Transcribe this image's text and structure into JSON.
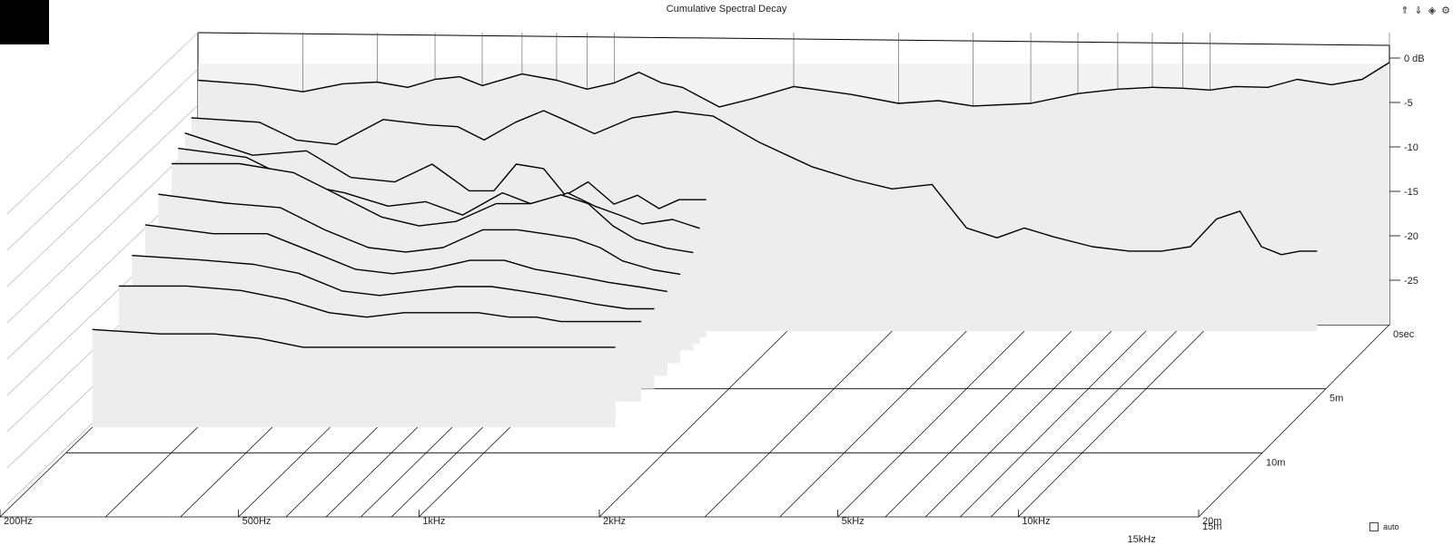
{
  "window": {
    "title": "Cumulative Spectral Decay"
  },
  "toolbar": {
    "icons": [
      "arrow-up-icon",
      "arrow-down-icon",
      "diamond-icon",
      "settings-icon"
    ]
  },
  "controls": {
    "auto_label": "auto",
    "auto_checked": false
  },
  "chart_data": {
    "type": "waterfall",
    "title": "Cumulative Spectral Decay",
    "x_axis": {
      "scale": "log",
      "range_hz": [
        200,
        20000
      ],
      "labels": [
        {
          "hz": 200,
          "label": "200Hz"
        },
        {
          "hz": 500,
          "label": "500Hz"
        },
        {
          "hz": 1000,
          "label": "1kHz"
        },
        {
          "hz": 2000,
          "label": "2kHz"
        },
        {
          "hz": 5000,
          "label": "5kHz"
        },
        {
          "hz": 10000,
          "label": "10kHz"
        },
        {
          "hz": 20000,
          "label": "20m"
        }
      ],
      "back_labels": [
        {
          "hz": 15000,
          "label": "15kHz"
        }
      ]
    },
    "z_axis": {
      "labels": [
        {
          "t": 0,
          "label": "0sec"
        },
        {
          "t": 5,
          "label": "5m"
        },
        {
          "t": 10,
          "label": "10m"
        },
        {
          "t": 15,
          "label": "15m"
        }
      ]
    },
    "y_axis": {
      "range_db": [
        -30,
        0
      ],
      "ticks": [
        {
          "db": 0,
          "label": "0 dB"
        },
        {
          "db": -5,
          "label": "-5"
        },
        {
          "db": -10,
          "label": "-10"
        },
        {
          "db": -15,
          "label": "-15"
        },
        {
          "db": -20,
          "label": "-20"
        },
        {
          "db": -25,
          "label": "-25"
        }
      ]
    },
    "slices": [
      {
        "t": 0,
        "points": [
          [
            200,
            -2.5
          ],
          [
            250,
            -3
          ],
          [
            300,
            -3.8
          ],
          [
            350,
            -2.9
          ],
          [
            400,
            -2.7
          ],
          [
            450,
            -3.3
          ],
          [
            500,
            -2.4
          ],
          [
            550,
            -2.1
          ],
          [
            600,
            -3.1
          ],
          [
            700,
            -1.8
          ],
          [
            800,
            -2.5
          ],
          [
            900,
            -3.5
          ],
          [
            1000,
            -2.8
          ],
          [
            1100,
            -1.6
          ],
          [
            1200,
            -2.8
          ],
          [
            1300,
            -3.3
          ],
          [
            1500,
            -5.5
          ],
          [
            1700,
            -4.6
          ],
          [
            2000,
            -3.2
          ],
          [
            2500,
            -4.1
          ],
          [
            3000,
            -5.1
          ],
          [
            3500,
            -4.8
          ],
          [
            4000,
            -5.4
          ],
          [
            5000,
            -5.1
          ],
          [
            6000,
            -4.0
          ],
          [
            7000,
            -3.5
          ],
          [
            8000,
            -3.3
          ],
          [
            9000,
            -3.4
          ],
          [
            10000,
            -3.6
          ],
          [
            11000,
            -3.2
          ],
          [
            12500,
            -3.3
          ],
          [
            14000,
            -2.4
          ],
          [
            16000,
            -3.0
          ],
          [
            18000,
            -2.4
          ],
          [
            20000,
            -0.5
          ]
        ]
      },
      {
        "t": 0.5,
        "points": [
          [
            200,
            -6
          ],
          [
            260,
            -6.5
          ],
          [
            300,
            -8.5
          ],
          [
            350,
            -9
          ],
          [
            420,
            -6.2
          ],
          [
            500,
            -6.8
          ],
          [
            560,
            -7
          ],
          [
            620,
            -8.5
          ],
          [
            700,
            -6.5
          ],
          [
            780,
            -5.2
          ],
          [
            850,
            -6.3
          ],
          [
            950,
            -7.8
          ],
          [
            1100,
            -6
          ],
          [
            1300,
            -5.3
          ],
          [
            1500,
            -5.8
          ],
          [
            1800,
            -8.8
          ],
          [
            2200,
            -11.5
          ],
          [
            2600,
            -13
          ],
          [
            3000,
            -14
          ],
          [
            3500,
            -13.5
          ],
          [
            4000,
            -18.4
          ],
          [
            4500,
            -19.5
          ],
          [
            5000,
            -18.4
          ],
          [
            5600,
            -19.4
          ],
          [
            6500,
            -20.5
          ],
          [
            7500,
            -21
          ],
          [
            8500,
            -21
          ],
          [
            9500,
            -20.5
          ],
          [
            10500,
            -17.4
          ],
          [
            11500,
            -16.5
          ],
          [
            12500,
            -20.5
          ],
          [
            13500,
            -21.4
          ],
          [
            14500,
            -21
          ],
          [
            15500,
            -21
          ]
        ]
      },
      {
        "t": 1.0,
        "points": [
          [
            200,
            -7
          ],
          [
            260,
            -9.5
          ],
          [
            320,
            -9
          ],
          [
            380,
            -12
          ],
          [
            450,
            -12.5
          ],
          [
            520,
            -10.5
          ],
          [
            600,
            -13.5
          ],
          [
            660,
            -13.5
          ],
          [
            720,
            -10.5
          ],
          [
            800,
            -11
          ],
          [
            870,
            -14
          ],
          [
            950,
            -12.5
          ],
          [
            1050,
            -15
          ],
          [
            1150,
            -14
          ],
          [
            1250,
            -15.5
          ],
          [
            1350,
            -14.5
          ],
          [
            1500,
            -14.5
          ]
        ]
      },
      {
        "t": 1.5,
        "points": [
          [
            200,
            -8
          ],
          [
            260,
            -9
          ],
          [
            320,
            -12
          ],
          [
            380,
            -13
          ],
          [
            450,
            -14.5
          ],
          [
            520,
            -14
          ],
          [
            600,
            -15.5
          ],
          [
            700,
            -13
          ],
          [
            800,
            -14.5
          ],
          [
            900,
            -13
          ],
          [
            1000,
            -14.5
          ],
          [
            1100,
            -15.5
          ],
          [
            1200,
            -16.5
          ],
          [
            1350,
            -16
          ],
          [
            1500,
            -17
          ]
        ]
      },
      {
        "t": 2.0,
        "points": [
          [
            200,
            -9
          ],
          [
            260,
            -9
          ],
          [
            320,
            -10
          ],
          [
            380,
            -12.5
          ],
          [
            450,
            -15
          ],
          [
            520,
            -16
          ],
          [
            600,
            -15.5
          ],
          [
            700,
            -13.5
          ],
          [
            800,
            -13.5
          ],
          [
            900,
            -12.5
          ],
          [
            1000,
            -13.5
          ],
          [
            1100,
            -16
          ],
          [
            1200,
            -17.5
          ],
          [
            1350,
            -18.5
          ],
          [
            1500,
            -19
          ]
        ]
      },
      {
        "t": 3.0,
        "points": [
          [
            200,
            -11
          ],
          [
            260,
            -12
          ],
          [
            320,
            -12.5
          ],
          [
            380,
            -15
          ],
          [
            450,
            -17
          ],
          [
            520,
            -17.5
          ],
          [
            600,
            -17
          ],
          [
            700,
            -15
          ],
          [
            800,
            -15
          ],
          [
            900,
            -15.5
          ],
          [
            1000,
            -16
          ],
          [
            1100,
            -17
          ],
          [
            1200,
            -18.5
          ],
          [
            1350,
            -19.5
          ],
          [
            1500,
            -20
          ]
        ]
      },
      {
        "t": 4.0,
        "points": [
          [
            200,
            -13
          ],
          [
            260,
            -14
          ],
          [
            320,
            -14
          ],
          [
            380,
            -16
          ],
          [
            450,
            -18
          ],
          [
            520,
            -18.5
          ],
          [
            600,
            -18
          ],
          [
            700,
            -17
          ],
          [
            800,
            -17
          ],
          [
            900,
            -18
          ],
          [
            1000,
            -18.5
          ],
          [
            1100,
            -19
          ],
          [
            1200,
            -19.5
          ],
          [
            1350,
            -20
          ],
          [
            1500,
            -20.5
          ]
        ]
      },
      {
        "t": 5.0,
        "points": [
          [
            200,
            -15
          ],
          [
            260,
            -15.5
          ],
          [
            320,
            -16
          ],
          [
            380,
            -17
          ],
          [
            450,
            -19
          ],
          [
            520,
            -19.5
          ],
          [
            600,
            -19
          ],
          [
            700,
            -18.5
          ],
          [
            800,
            -18.5
          ],
          [
            900,
            -19
          ],
          [
            1000,
            -19.5
          ],
          [
            1100,
            -20
          ],
          [
            1200,
            -20.5
          ],
          [
            1350,
            -21
          ],
          [
            1500,
            -21
          ]
        ]
      },
      {
        "t": 6.0,
        "points": [
          [
            200,
            -17
          ],
          [
            260,
            -17
          ],
          [
            320,
            -17.5
          ],
          [
            380,
            -18.5
          ],
          [
            450,
            -20
          ],
          [
            520,
            -20.5
          ],
          [
            600,
            -20
          ],
          [
            700,
            -20
          ],
          [
            800,
            -20
          ],
          [
            900,
            -20.5
          ],
          [
            1000,
            -20.5
          ],
          [
            1100,
            -21
          ],
          [
            1200,
            -21
          ],
          [
            1350,
            -21
          ],
          [
            1500,
            -21
          ]
        ]
      },
      {
        "t": 8.0,
        "points": [
          [
            200,
            -19
          ],
          [
            260,
            -19.5
          ],
          [
            320,
            -19.5
          ],
          [
            380,
            -20
          ],
          [
            450,
            -21
          ],
          [
            520,
            -21
          ],
          [
            600,
            -21
          ],
          [
            700,
            -21
          ],
          [
            800,
            -21
          ],
          [
            900,
            -21
          ],
          [
            1000,
            -21
          ],
          [
            1100,
            -21
          ],
          [
            1200,
            -21
          ],
          [
            1350,
            -21
          ],
          [
            1500,
            -21
          ]
        ]
      }
    ]
  }
}
